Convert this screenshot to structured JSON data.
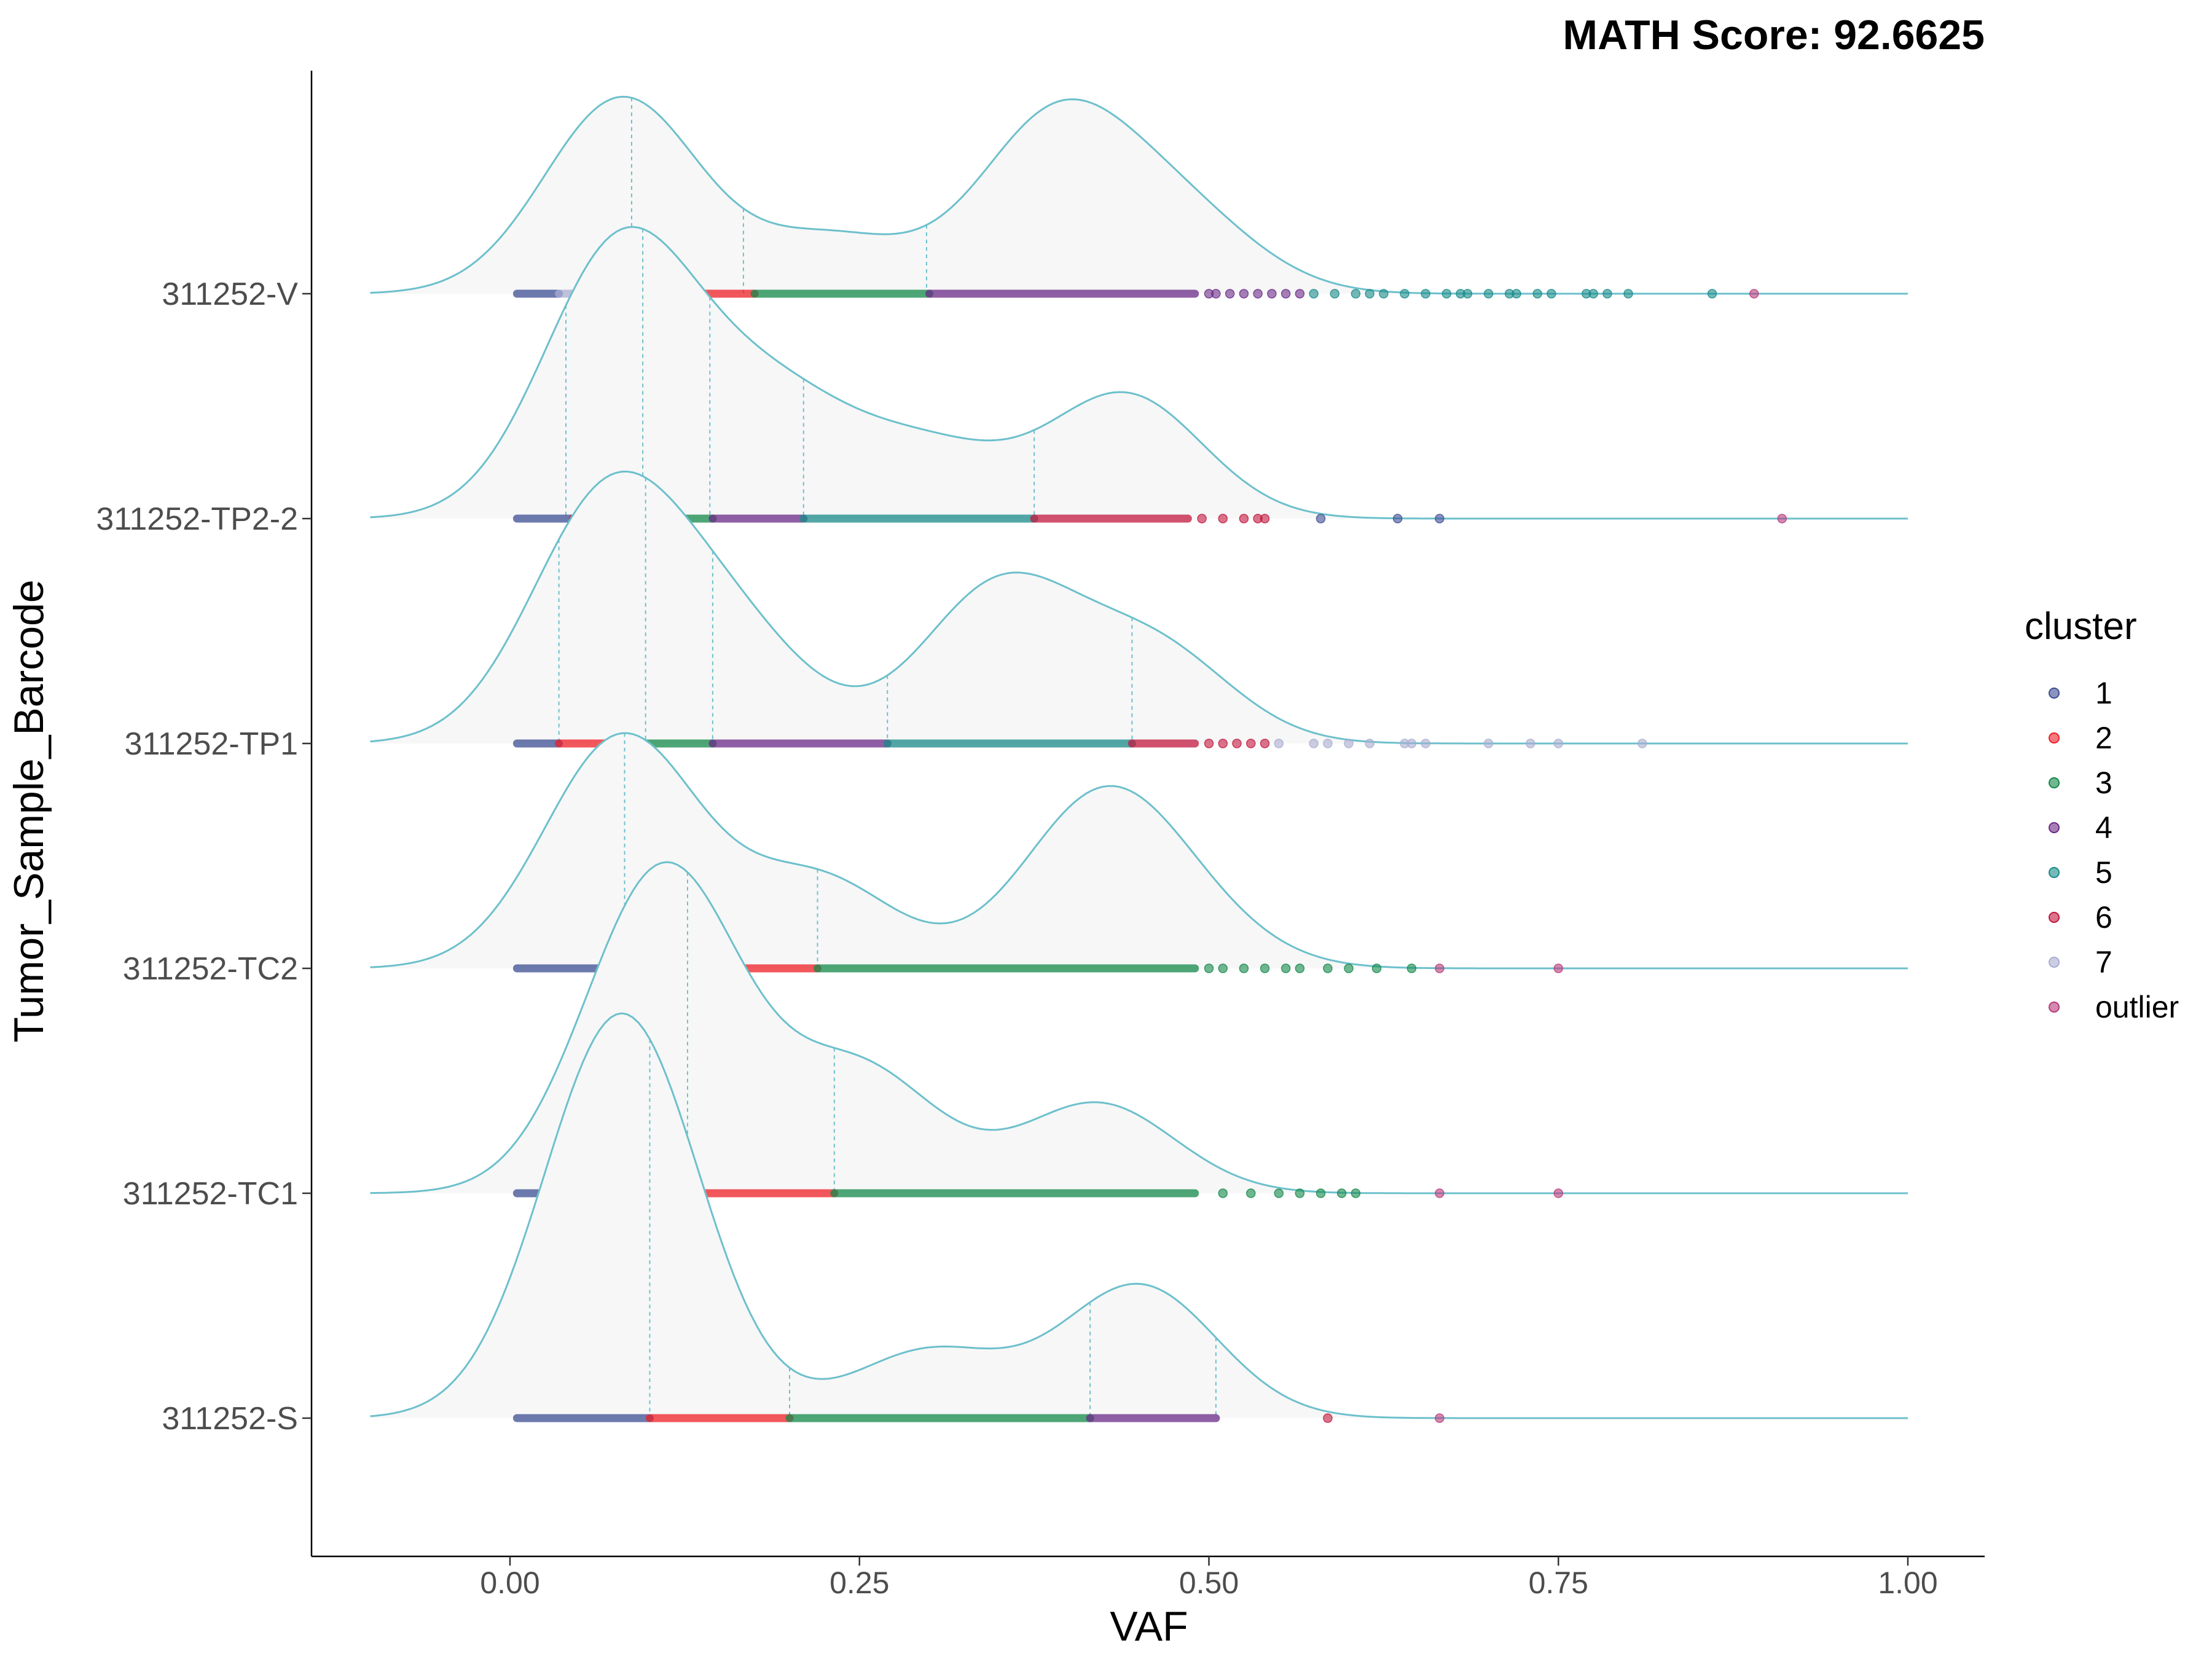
{
  "chart_data": {
    "type": "ridgeline-density",
    "title": "MATH Score: 92.6625",
    "xlabel": "VAF",
    "ylabel": "Tumor_Sample_Barcode",
    "xlim": [
      -0.1,
      1.0
    ],
    "x_ticks": [
      0.0,
      0.25,
      0.5,
      0.75,
      1.0
    ],
    "x_tick_labels": [
      "0.00",
      "0.25",
      "0.50",
      "0.75",
      "1.00"
    ],
    "grid": false,
    "legend": {
      "title": "cluster",
      "position": "right",
      "entries": [
        "1",
        "2",
        "3",
        "4",
        "5",
        "6",
        "7",
        "outlier"
      ]
    },
    "colors": {
      "1": "#3C4D93",
      "2": "#EE1F26",
      "3": "#13884A",
      "4": "#6A2A87",
      "5": "#188A88",
      "6": "#C2183E",
      "7": "#A9ADD1",
      "outlier": "#B83A7A",
      "density_line": "#6DC0CC",
      "density_fill": "#F7F7F7"
    },
    "samples": [
      {
        "name": "311252-V",
        "density_peaks": [
          {
            "x": 0.08,
            "h": 0.87
          },
          {
            "x": 0.23,
            "h": 0.25
          },
          {
            "x": 0.39,
            "h": 0.76
          },
          {
            "x": 0.48,
            "h": 0.33
          }
        ],
        "cluster_lines": [
          0.087,
          0.167,
          0.298
        ],
        "segments": [
          {
            "cluster": "1",
            "from": 0.005,
            "to": 0.035
          },
          {
            "cluster": "7",
            "from": 0.035,
            "to": 0.085
          },
          {
            "cluster": "2",
            "from": 0.085,
            "to": 0.175
          },
          {
            "cluster": "3",
            "from": 0.175,
            "to": 0.3
          },
          {
            "cluster": "4",
            "from": 0.3,
            "to": 0.49
          }
        ],
        "points": [
          {
            "cluster": "4",
            "x": [
              0.5,
              0.505,
              0.515,
              0.525,
              0.535,
              0.545,
              0.555,
              0.565
            ]
          },
          {
            "cluster": "5",
            "x": [
              0.575,
              0.59,
              0.605,
              0.615,
              0.625,
              0.64,
              0.655,
              0.67,
              0.68,
              0.685,
              0.7,
              0.715,
              0.72,
              0.735,
              0.745,
              0.77,
              0.775,
              0.785,
              0.8,
              0.86
            ]
          },
          {
            "cluster": "outlier",
            "x": [
              0.89
            ]
          }
        ]
      },
      {
        "name": "311252-TP2-2",
        "density_peaks": [
          {
            "x": 0.08,
            "h": 1.22
          },
          {
            "x": 0.19,
            "h": 0.5
          },
          {
            "x": 0.3,
            "h": 0.3
          },
          {
            "x": 0.44,
            "h": 0.55
          }
        ],
        "cluster_lines": [
          0.04,
          0.095,
          0.143,
          0.21,
          0.375
        ],
        "segments": [
          {
            "cluster": "1",
            "from": 0.005,
            "to": 0.045
          },
          {
            "cluster": "2",
            "from": 0.045,
            "to": 0.095
          },
          {
            "cluster": "3",
            "from": 0.095,
            "to": 0.145
          },
          {
            "cluster": "4",
            "from": 0.145,
            "to": 0.21
          },
          {
            "cluster": "5",
            "from": 0.21,
            "to": 0.375
          },
          {
            "cluster": "6",
            "from": 0.375,
            "to": 0.485
          }
        ],
        "points": [
          {
            "cluster": "6",
            "x": [
              0.495,
              0.51,
              0.525,
              0.535,
              0.54
            ]
          },
          {
            "cluster": "1",
            "x": [
              0.58,
              0.635,
              0.665
            ]
          },
          {
            "cluster": "outlier",
            "x": [
              0.91
            ]
          }
        ]
      },
      {
        "name": "311252-TP1",
        "density_peaks": [
          {
            "x": 0.07,
            "h": 1.07
          },
          {
            "x": 0.16,
            "h": 0.45
          },
          {
            "x": 0.35,
            "h": 0.69
          },
          {
            "x": 0.46,
            "h": 0.42
          }
        ],
        "cluster_lines": [
          0.035,
          0.097,
          0.145,
          0.27,
          0.445
        ],
        "segments": [
          {
            "cluster": "1",
            "from": 0.005,
            "to": 0.035
          },
          {
            "cluster": "2",
            "from": 0.035,
            "to": 0.095
          },
          {
            "cluster": "3",
            "from": 0.095,
            "to": 0.145
          },
          {
            "cluster": "4",
            "from": 0.145,
            "to": 0.27
          },
          {
            "cluster": "5",
            "from": 0.27,
            "to": 0.445
          },
          {
            "cluster": "6",
            "from": 0.445,
            "to": 0.49
          }
        ],
        "points": [
          {
            "cluster": "6",
            "x": [
              0.5,
              0.51,
              0.52,
              0.53,
              0.54
            ]
          },
          {
            "cluster": "7",
            "x": [
              0.55,
              0.575,
              0.585,
              0.6,
              0.615,
              0.64,
              0.645,
              0.655,
              0.7,
              0.73,
              0.75,
              0.81
            ]
          }
        ]
      },
      {
        "name": "311252-TC2",
        "density_peaks": [
          {
            "x": 0.08,
            "h": 1.03
          },
          {
            "x": 0.22,
            "h": 0.4
          },
          {
            "x": 0.42,
            "h": 0.69
          },
          {
            "x": 0.48,
            "h": 0.2
          }
        ],
        "cluster_lines": [
          0.082,
          0.22
        ],
        "segments": [
          {
            "cluster": "1",
            "from": 0.005,
            "to": 0.082
          },
          {
            "cluster": "2",
            "from": 0.082,
            "to": 0.22
          },
          {
            "cluster": "3",
            "from": 0.22,
            "to": 0.49
          }
        ],
        "points": [
          {
            "cluster": "3",
            "x": [
              0.5,
              0.51,
              0.525,
              0.54,
              0.555,
              0.565,
              0.585,
              0.6,
              0.62,
              0.645
            ]
          },
          {
            "cluster": "outlier",
            "x": [
              0.665,
              0.75
            ]
          }
        ]
      },
      {
        "name": "311252-TC1",
        "density_peaks": [
          {
            "x": 0.11,
            "h": 1.45
          },
          {
            "x": 0.25,
            "h": 0.55
          },
          {
            "x": 0.42,
            "h": 0.4
          }
        ],
        "cluster_lines": [
          0.127,
          0.232
        ],
        "segments": [
          {
            "cluster": "1",
            "from": 0.005,
            "to": 0.03
          },
          {
            "cluster": "7",
            "from": 0.03,
            "to": 0.127
          },
          {
            "cluster": "2",
            "from": 0.127,
            "to": 0.232
          },
          {
            "cluster": "3",
            "from": 0.232,
            "to": 0.49
          }
        ],
        "points": [
          {
            "cluster": "3",
            "x": [
              0.51,
              0.53,
              0.55,
              0.565,
              0.58,
              0.595,
              0.605
            ]
          },
          {
            "cluster": "outlier",
            "x": [
              0.665,
              0.75
            ]
          }
        ]
      },
      {
        "name": "311252-S",
        "density_peaks": [
          {
            "x": 0.08,
            "h": 1.8
          },
          {
            "x": 0.3,
            "h": 0.3
          },
          {
            "x": 0.45,
            "h": 0.59
          }
        ],
        "cluster_lines": [
          0.1,
          0.2,
          0.415,
          0.505
        ],
        "segments": [
          {
            "cluster": "1",
            "from": 0.005,
            "to": 0.1
          },
          {
            "cluster": "2",
            "from": 0.1,
            "to": 0.2
          },
          {
            "cluster": "3",
            "from": 0.2,
            "to": 0.415
          },
          {
            "cluster": "4",
            "from": 0.415,
            "to": 0.505
          }
        ],
        "points": [
          {
            "cluster": "6",
            "x": [
              0.585
            ]
          },
          {
            "cluster": "outlier",
            "x": [
              0.665
            ]
          }
        ]
      }
    ]
  }
}
